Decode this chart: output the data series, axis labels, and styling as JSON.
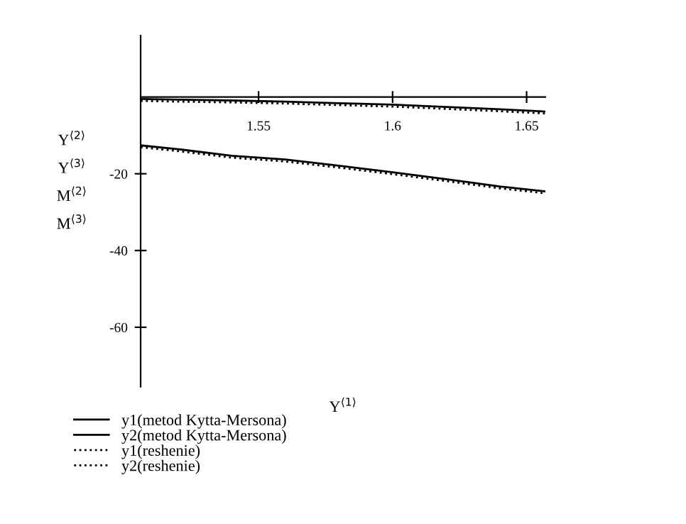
{
  "chart_data": {
    "type": "line",
    "xlabel": "Y$^{⟨1⟩}$",
    "ylabel": "Y$^{⟨2⟩}$\nY$^{⟨3⟩}$\nM$^{⟨2⟩}$\nM$^{⟨3⟩}$",
    "x": [
      1.506,
      1.52,
      1.54,
      1.56,
      1.58,
      1.6,
      1.62,
      1.64,
      1.657
    ],
    "series": [
      {
        "name": "y1(metod Kytta-Mersona)",
        "color": "#000000",
        "line_style": "solid",
        "values": [
          -0.5,
          -0.7,
          -0.9,
          -1.2,
          -1.6,
          -2.0,
          -2.6,
          -3.2,
          -3.8
        ]
      },
      {
        "name": "y2(metod Kytta-Mersona)",
        "color": "#000000",
        "line_style": "solid",
        "values": [
          -12.6,
          -13.6,
          -15.3,
          -16.3,
          -17.9,
          -19.6,
          -21.4,
          -23.3,
          -24.6
        ]
      },
      {
        "name": "y1(reshenie)",
        "color": "#000000",
        "line_style": "dotted",
        "values": [
          -1.0,
          -1.2,
          -1.4,
          -1.7,
          -2.1,
          -2.5,
          -3.1,
          -3.7,
          -4.3
        ]
      },
      {
        "name": "y2(reshenie)",
        "color": "#000000",
        "line_style": "dotted",
        "values": [
          -13.1,
          -14.1,
          -15.8,
          -16.8,
          -18.4,
          -20.1,
          -21.9,
          -23.8,
          -25.1
        ]
      }
    ],
    "xlim": [
      1.506,
      1.657
    ],
    "xticks": [
      1.55,
      1.6,
      1.65
    ],
    "ylim": [
      -75.5,
      16
    ],
    "yticks": [
      -20,
      -40,
      -60
    ],
    "grid": false,
    "legend": "bottom",
    "marker": "none"
  }
}
